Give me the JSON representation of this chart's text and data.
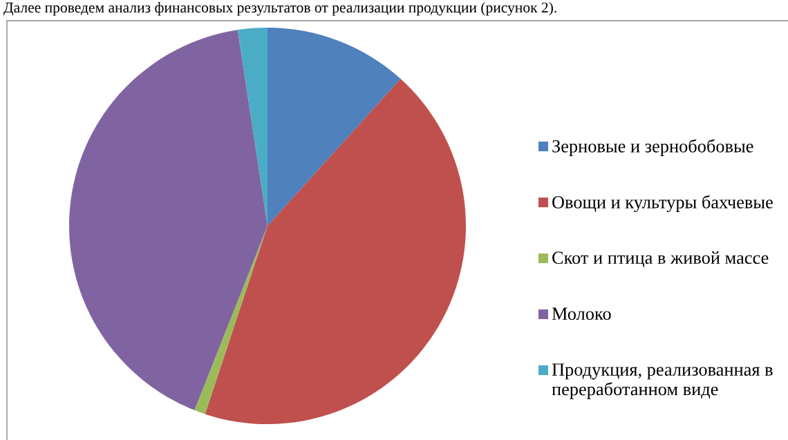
{
  "chart_data": {
    "type": "pie",
    "categories": [
      "Зерновые и зернобобовые",
      "Овощи и культуры бахчевые",
      "Скот и птица в живой массе",
      "Молоко",
      "Продукция, реализованная в переработанном виде"
    ],
    "values": [
      11.7,
      43.4,
      0.9,
      41.6,
      2.4
    ],
    "colors": [
      "#4f81bd",
      "#c0504d",
      "#9bbb59",
      "#8064a2",
      "#4bacc6"
    ],
    "legend": "right",
    "annotations": [
      "Далее проведем анализ финансовых результатов от реализации продукции (рисунок 2)."
    ]
  }
}
